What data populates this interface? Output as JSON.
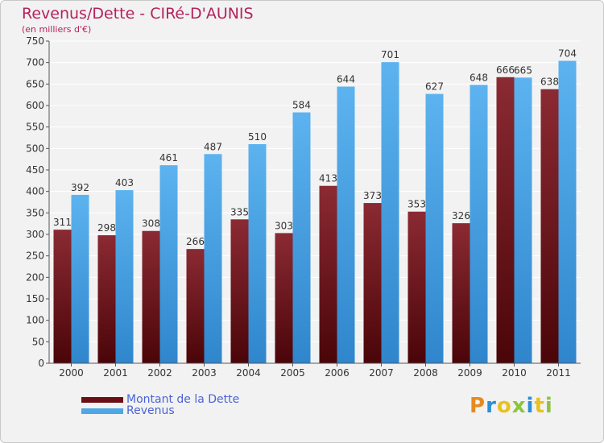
{
  "chart_data": {
    "type": "bar",
    "title": "Revenus/Dette - CIRé-D'AUNIS",
    "subtitle": "(en milliers d'€)",
    "categories": [
      "2000",
      "2001",
      "2002",
      "2003",
      "2004",
      "2005",
      "2006",
      "2007",
      "2008",
      "2009",
      "2010",
      "2011"
    ],
    "series": [
      {
        "name": "Montant de la Dette",
        "color": "#6b0f16",
        "values": [
          311,
          298,
          308,
          266,
          335,
          303,
          413,
          373,
          353,
          326,
          666,
          638
        ]
      },
      {
        "name": "Revenus",
        "color": "#4ea6e6",
        "values": [
          392,
          403,
          461,
          487,
          510,
          584,
          644,
          701,
          627,
          648,
          665,
          704
        ]
      }
    ],
    "ylim": [
      0,
      750
    ],
    "yticks": [
      0,
      50,
      100,
      150,
      200,
      250,
      300,
      350,
      400,
      450,
      500,
      550,
      600,
      650,
      700,
      750
    ],
    "grid": true,
    "xlabel": "",
    "ylabel": "",
    "legend_position": "bottom-left"
  },
  "logo": {
    "letters": [
      "P",
      "r",
      "o",
      "x",
      "i",
      "t",
      "i"
    ],
    "colors": [
      "#e88a1e",
      "#2a8fd6",
      "#e8c21e",
      "#8bc53f",
      "#2a8fd6",
      "#e8c21e",
      "#8bc53f"
    ]
  }
}
